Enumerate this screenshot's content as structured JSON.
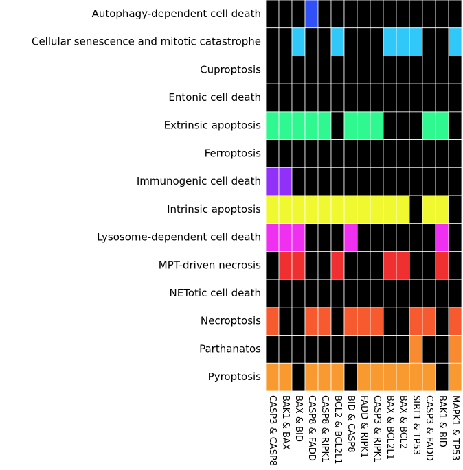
{
  "chart_data": {
    "type": "heatmap",
    "x": [
      "CASP3 & CASP8",
      "BAK1 & BAX",
      "BAX & BID",
      "CASP8 & FADD",
      "CASP8 & RIPK1",
      "BCL2 & BCL2L1",
      "BID & CASP8",
      "FADD & RIPK1",
      "CASP3 & RIPK1",
      "BAX & BCL2L1",
      "BAX & BCL2",
      "SIRT1 & TP53",
      "CASP3 & FADD",
      "BAK1 & BID",
      "MAPK1 & TP53"
    ],
    "series": [
      {
        "name": "Autophagy-dependent cell death",
        "color": "#3050f8",
        "values": [
          0,
          0,
          0,
          1,
          0,
          0,
          0,
          0,
          0,
          0,
          0,
          0,
          0,
          0,
          0
        ]
      },
      {
        "name": "Cellular senescence and mitotic catastrophe",
        "color": "#30c8f8",
        "values": [
          0,
          0,
          1,
          0,
          0,
          1,
          0,
          0,
          0,
          1,
          1,
          1,
          0,
          0,
          1
        ]
      },
      {
        "name": "Cuproptosis",
        "values": [
          0,
          0,
          0,
          0,
          0,
          0,
          0,
          0,
          0,
          0,
          0,
          0,
          0,
          0,
          0
        ]
      },
      {
        "name": "Entonic cell death",
        "values": [
          0,
          0,
          0,
          0,
          0,
          0,
          0,
          0,
          0,
          0,
          0,
          0,
          0,
          0,
          0
        ]
      },
      {
        "name": "Extrinsic apoptosis",
        "color": "#30f890",
        "values": [
          1,
          1,
          1,
          1,
          1,
          0,
          1,
          1,
          1,
          0,
          0,
          0,
          1,
          1,
          0
        ]
      },
      {
        "name": "Ferroptosis",
        "values": [
          0,
          0,
          0,
          0,
          0,
          0,
          0,
          0,
          0,
          0,
          0,
          0,
          0,
          0,
          0
        ]
      },
      {
        "name": "Immunogenic cell death",
        "color": "#9030f8",
        "values": [
          1,
          1,
          0,
          0,
          0,
          0,
          0,
          0,
          0,
          0,
          0,
          0,
          0,
          0,
          0
        ]
      },
      {
        "name": "Intrinsic apoptosis",
        "color": "#f0f830",
        "values": [
          1,
          1,
          1,
          1,
          1,
          1,
          1,
          1,
          1,
          1,
          1,
          0,
          1,
          1,
          0
        ]
      },
      {
        "name": "Lysosome-dependent cell death",
        "color": "#f030f0",
        "values": [
          1,
          1,
          1,
          0,
          0,
          0,
          1,
          0,
          0,
          0,
          0,
          0,
          0,
          1,
          0
        ]
      },
      {
        "name": "MPT-driven necrosis",
        "color": "#f03030",
        "values": [
          0,
          1,
          1,
          0,
          0,
          1,
          0,
          0,
          0,
          1,
          1,
          0,
          0,
          1,
          0
        ]
      },
      {
        "name": "NETotic cell death",
        "values": [
          0,
          0,
          0,
          0,
          0,
          0,
          0,
          0,
          0,
          0,
          0,
          0,
          0,
          0,
          0
        ]
      },
      {
        "name": "Necroptosis",
        "color": "#f85a30",
        "values": [
          1,
          0,
          0,
          1,
          1,
          0,
          1,
          1,
          1,
          0,
          0,
          1,
          1,
          0,
          1
        ]
      },
      {
        "name": "Parthanatos",
        "color": "#f88a30",
        "values": [
          0,
          0,
          0,
          0,
          0,
          0,
          0,
          0,
          0,
          0,
          0,
          1,
          0,
          0,
          1
        ]
      },
      {
        "name": "Pyroptosis",
        "color": "#f89a30",
        "values": [
          1,
          1,
          0,
          1,
          1,
          1,
          0,
          1,
          1,
          1,
          1,
          1,
          1,
          0,
          1
        ]
      }
    ]
  }
}
